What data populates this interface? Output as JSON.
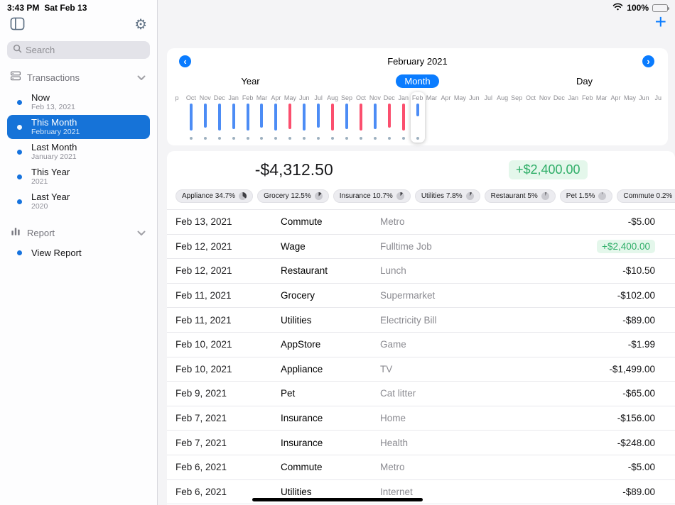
{
  "status_bar": {
    "time": "3:43 PM",
    "date": "Sat Feb 13",
    "battery": "100%"
  },
  "sidebar": {
    "search": {
      "placeholder": "Search"
    },
    "sections": [
      {
        "label": "Transactions",
        "icon": "transactions-icon",
        "items": [
          {
            "title": "Now",
            "subtitle": "Feb 13, 2021",
            "selected": false
          },
          {
            "title": "This Month",
            "subtitle": "February 2021",
            "selected": true
          },
          {
            "title": "Last Month",
            "subtitle": "January 2021",
            "selected": false
          },
          {
            "title": "This Year",
            "subtitle": "2021",
            "selected": false
          },
          {
            "title": "Last Year",
            "subtitle": "2020",
            "selected": false
          }
        ]
      },
      {
        "label": "Report",
        "icon": "report-icon",
        "items": [
          {
            "title": "View Report",
            "selected": false
          }
        ]
      }
    ]
  },
  "toolbar": {
    "add_label": "+"
  },
  "period_nav": {
    "title": "February 2021",
    "prev_label": "‹",
    "next_label": "›",
    "tabs": [
      {
        "label": "Year",
        "active": false
      },
      {
        "label": "Month",
        "active": true
      },
      {
        "label": "Day",
        "active": false
      }
    ]
  },
  "timeline": {
    "months": [
      {
        "label": "p"
      },
      {
        "label": "Oct",
        "bar": 38,
        "kind": "blue"
      },
      {
        "label": "Nov",
        "bar": 34,
        "kind": "blue"
      },
      {
        "label": "Dec",
        "bar": 38,
        "kind": "blue"
      },
      {
        "label": "Jan",
        "bar": 36,
        "kind": "blue"
      },
      {
        "label": "Feb",
        "bar": 38,
        "kind": "blue"
      },
      {
        "label": "Mar",
        "bar": 34,
        "kind": "blue"
      },
      {
        "label": "Apr",
        "bar": 38,
        "kind": "blue"
      },
      {
        "label": "May",
        "bar": 36,
        "kind": "red"
      },
      {
        "label": "Jun",
        "bar": 38,
        "kind": "blue"
      },
      {
        "label": "Jul",
        "bar": 34,
        "kind": "blue"
      },
      {
        "label": "Aug",
        "bar": 38,
        "kind": "red"
      },
      {
        "label": "Sep",
        "bar": 36,
        "kind": "blue"
      },
      {
        "label": "Oct",
        "bar": 38,
        "kind": "red"
      },
      {
        "label": "Nov",
        "bar": 36,
        "kind": "blue"
      },
      {
        "label": "Dec",
        "bar": 34,
        "kind": "red"
      },
      {
        "label": "Jan",
        "bar": 38,
        "kind": "red"
      },
      {
        "label": "Feb",
        "bar": 18,
        "kind": "blue",
        "current": true
      },
      {
        "label": "Mar"
      },
      {
        "label": "Apr"
      },
      {
        "label": "May"
      },
      {
        "label": "Jun"
      },
      {
        "label": "Jul"
      },
      {
        "label": "Aug"
      },
      {
        "label": "Sep"
      },
      {
        "label": "Oct"
      },
      {
        "label": "Nov"
      },
      {
        "label": "Dec"
      },
      {
        "label": "Jan"
      },
      {
        "label": "Feb"
      },
      {
        "label": "Mar"
      },
      {
        "label": "Apr"
      },
      {
        "label": "May"
      },
      {
        "label": "Jun"
      },
      {
        "label": "Ju"
      }
    ]
  },
  "summary": {
    "expense": "-$4,312.50",
    "income": "+$2,400.00"
  },
  "category_chips": [
    {
      "label": "Appliance 34.7%",
      "percent": 34.7
    },
    {
      "label": "Grocery 12.5%",
      "percent": 12.5
    },
    {
      "label": "Insurance 10.7%",
      "percent": 10.7
    },
    {
      "label": "Utilities 7.8%",
      "percent": 7.8
    },
    {
      "label": "Restaurant 5%",
      "percent": 5
    },
    {
      "label": "Pet 1.5%",
      "percent": 1.5
    },
    {
      "label": "Commute 0.2%",
      "percent": 0.2
    }
  ],
  "transactions": [
    {
      "date": "Feb 13, 2021",
      "category": "Commute",
      "description": "Metro",
      "amount": "-$5.00",
      "positive": false
    },
    {
      "date": "Feb 12, 2021",
      "category": "Wage",
      "description": "Fulltime Job",
      "amount": "+$2,400.00",
      "positive": true
    },
    {
      "date": "Feb 12, 2021",
      "category": "Restaurant",
      "description": "Lunch",
      "amount": "-$10.50",
      "positive": false
    },
    {
      "date": "Feb 11, 2021",
      "category": "Grocery",
      "description": "Supermarket",
      "amount": "-$102.00",
      "positive": false
    },
    {
      "date": "Feb 11, 2021",
      "category": "Utilities",
      "description": "Electricity Bill",
      "amount": "-$89.00",
      "positive": false
    },
    {
      "date": "Feb 10, 2021",
      "category": "AppStore",
      "description": "Game",
      "amount": "-$1.99",
      "positive": false
    },
    {
      "date": "Feb 10, 2021",
      "category": "Appliance",
      "description": "TV",
      "amount": "-$1,499.00",
      "positive": false
    },
    {
      "date": "Feb 9, 2021",
      "category": "Pet",
      "description": "Cat litter",
      "amount": "-$65.00",
      "positive": false
    },
    {
      "date": "Feb 7, 2021",
      "category": "Insurance",
      "description": "Home",
      "amount": "-$156.00",
      "positive": false
    },
    {
      "date": "Feb 7, 2021",
      "category": "Insurance",
      "description": "Health",
      "amount": "-$248.00",
      "positive": false
    },
    {
      "date": "Feb 6, 2021",
      "category": "Commute",
      "description": "Metro",
      "amount": "-$5.00",
      "positive": false
    },
    {
      "date": "Feb 6, 2021",
      "category": "Utilities",
      "description": "Internet",
      "amount": "-$89.00",
      "positive": false
    }
  ],
  "colors": {
    "accent": "#0a7cff",
    "selection": "#1673d8",
    "bar_positive": "#4c8cf5",
    "bar_negative": "#fb4f6e",
    "income_green": "#2fae68",
    "income_bg": "#e4f7eb"
  }
}
